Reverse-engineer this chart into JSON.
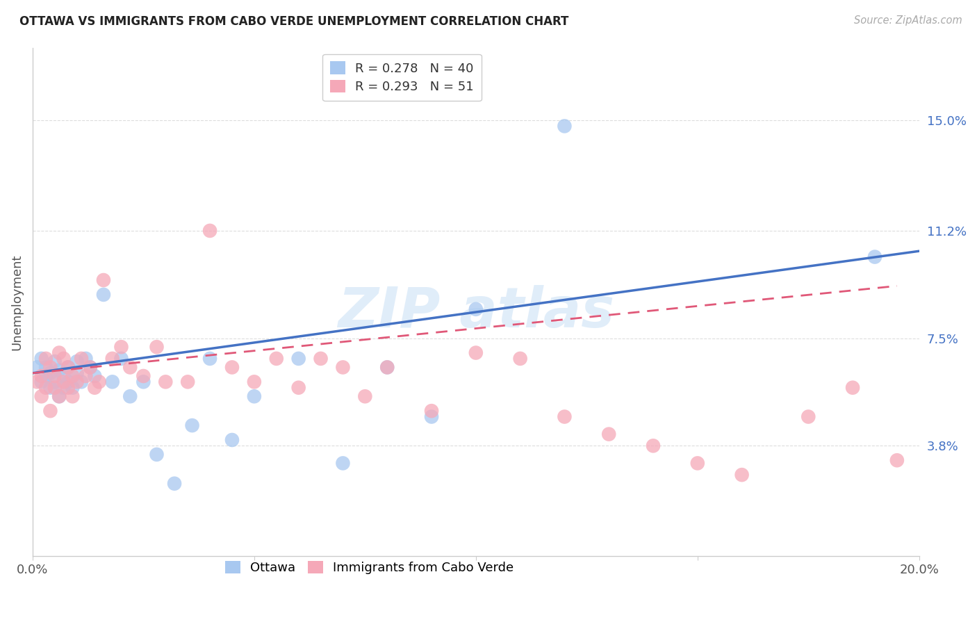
{
  "title": "OTTAWA VS IMMIGRANTS FROM CABO VERDE UNEMPLOYMENT CORRELATION CHART",
  "source": "Source: ZipAtlas.com",
  "ylabel": "Unemployment",
  "xlim": [
    0.0,
    0.2
  ],
  "ylim": [
    0.0,
    0.175
  ],
  "ytick_positions": [
    0.038,
    0.075,
    0.112,
    0.15
  ],
  "ytick_labels": [
    "3.8%",
    "7.5%",
    "11.2%",
    "15.0%"
  ],
  "xtick_positions": [
    0.0,
    0.05,
    0.1,
    0.15,
    0.2
  ],
  "xtick_labels": [
    "0.0%",
    "",
    "",
    "",
    "20.0%"
  ],
  "grid_color": "#dddddd",
  "background_color": "#ffffff",
  "ottawa_color": "#a8c8f0",
  "cabo_verde_color": "#f5a8b8",
  "ottawa_line_color": "#4472c4",
  "cabo_verde_line_color": "#e05878",
  "legend_R1": "0.278",
  "legend_N1": "40",
  "legend_R2": "0.293",
  "legend_N2": "51",
  "legend_label1": "Ottawa",
  "legend_label2": "Immigrants from Cabo Verde",
  "watermark_text": "ZIP atlas",
  "ottawa_points_x": [
    0.001,
    0.002,
    0.002,
    0.003,
    0.003,
    0.004,
    0.004,
    0.005,
    0.005,
    0.006,
    0.006,
    0.007,
    0.007,
    0.008,
    0.008,
    0.009,
    0.01,
    0.01,
    0.011,
    0.012,
    0.013,
    0.014,
    0.016,
    0.018,
    0.02,
    0.022,
    0.025,
    0.028,
    0.032,
    0.036,
    0.04,
    0.045,
    0.05,
    0.06,
    0.07,
    0.08,
    0.09,
    0.1,
    0.12,
    0.19
  ],
  "ottawa_points_y": [
    0.065,
    0.068,
    0.06,
    0.065,
    0.062,
    0.063,
    0.058,
    0.067,
    0.06,
    0.064,
    0.055,
    0.062,
    0.058,
    0.065,
    0.06,
    0.058,
    0.067,
    0.063,
    0.06,
    0.068,
    0.065,
    0.062,
    0.09,
    0.06,
    0.068,
    0.055,
    0.06,
    0.035,
    0.025,
    0.045,
    0.068,
    0.04,
    0.055,
    0.068,
    0.032,
    0.065,
    0.048,
    0.085,
    0.148,
    0.103
  ],
  "cabo_points_x": [
    0.001,
    0.002,
    0.002,
    0.003,
    0.003,
    0.004,
    0.004,
    0.005,
    0.005,
    0.006,
    0.006,
    0.007,
    0.007,
    0.008,
    0.008,
    0.009,
    0.009,
    0.01,
    0.011,
    0.012,
    0.013,
    0.014,
    0.015,
    0.016,
    0.018,
    0.02,
    0.022,
    0.025,
    0.028,
    0.03,
    0.035,
    0.04,
    0.045,
    0.05,
    0.055,
    0.06,
    0.065,
    0.07,
    0.075,
    0.08,
    0.09,
    0.1,
    0.11,
    0.12,
    0.13,
    0.14,
    0.15,
    0.16,
    0.175,
    0.185,
    0.195
  ],
  "cabo_points_y": [
    0.06,
    0.062,
    0.055,
    0.068,
    0.058,
    0.065,
    0.05,
    0.062,
    0.058,
    0.07,
    0.055,
    0.068,
    0.06,
    0.058,
    0.065,
    0.062,
    0.055,
    0.06,
    0.068,
    0.062,
    0.065,
    0.058,
    0.06,
    0.095,
    0.068,
    0.072,
    0.065,
    0.062,
    0.072,
    0.06,
    0.06,
    0.112,
    0.065,
    0.06,
    0.068,
    0.058,
    0.068,
    0.065,
    0.055,
    0.065,
    0.05,
    0.07,
    0.068,
    0.048,
    0.042,
    0.038,
    0.032,
    0.028,
    0.048,
    0.058,
    0.033
  ]
}
